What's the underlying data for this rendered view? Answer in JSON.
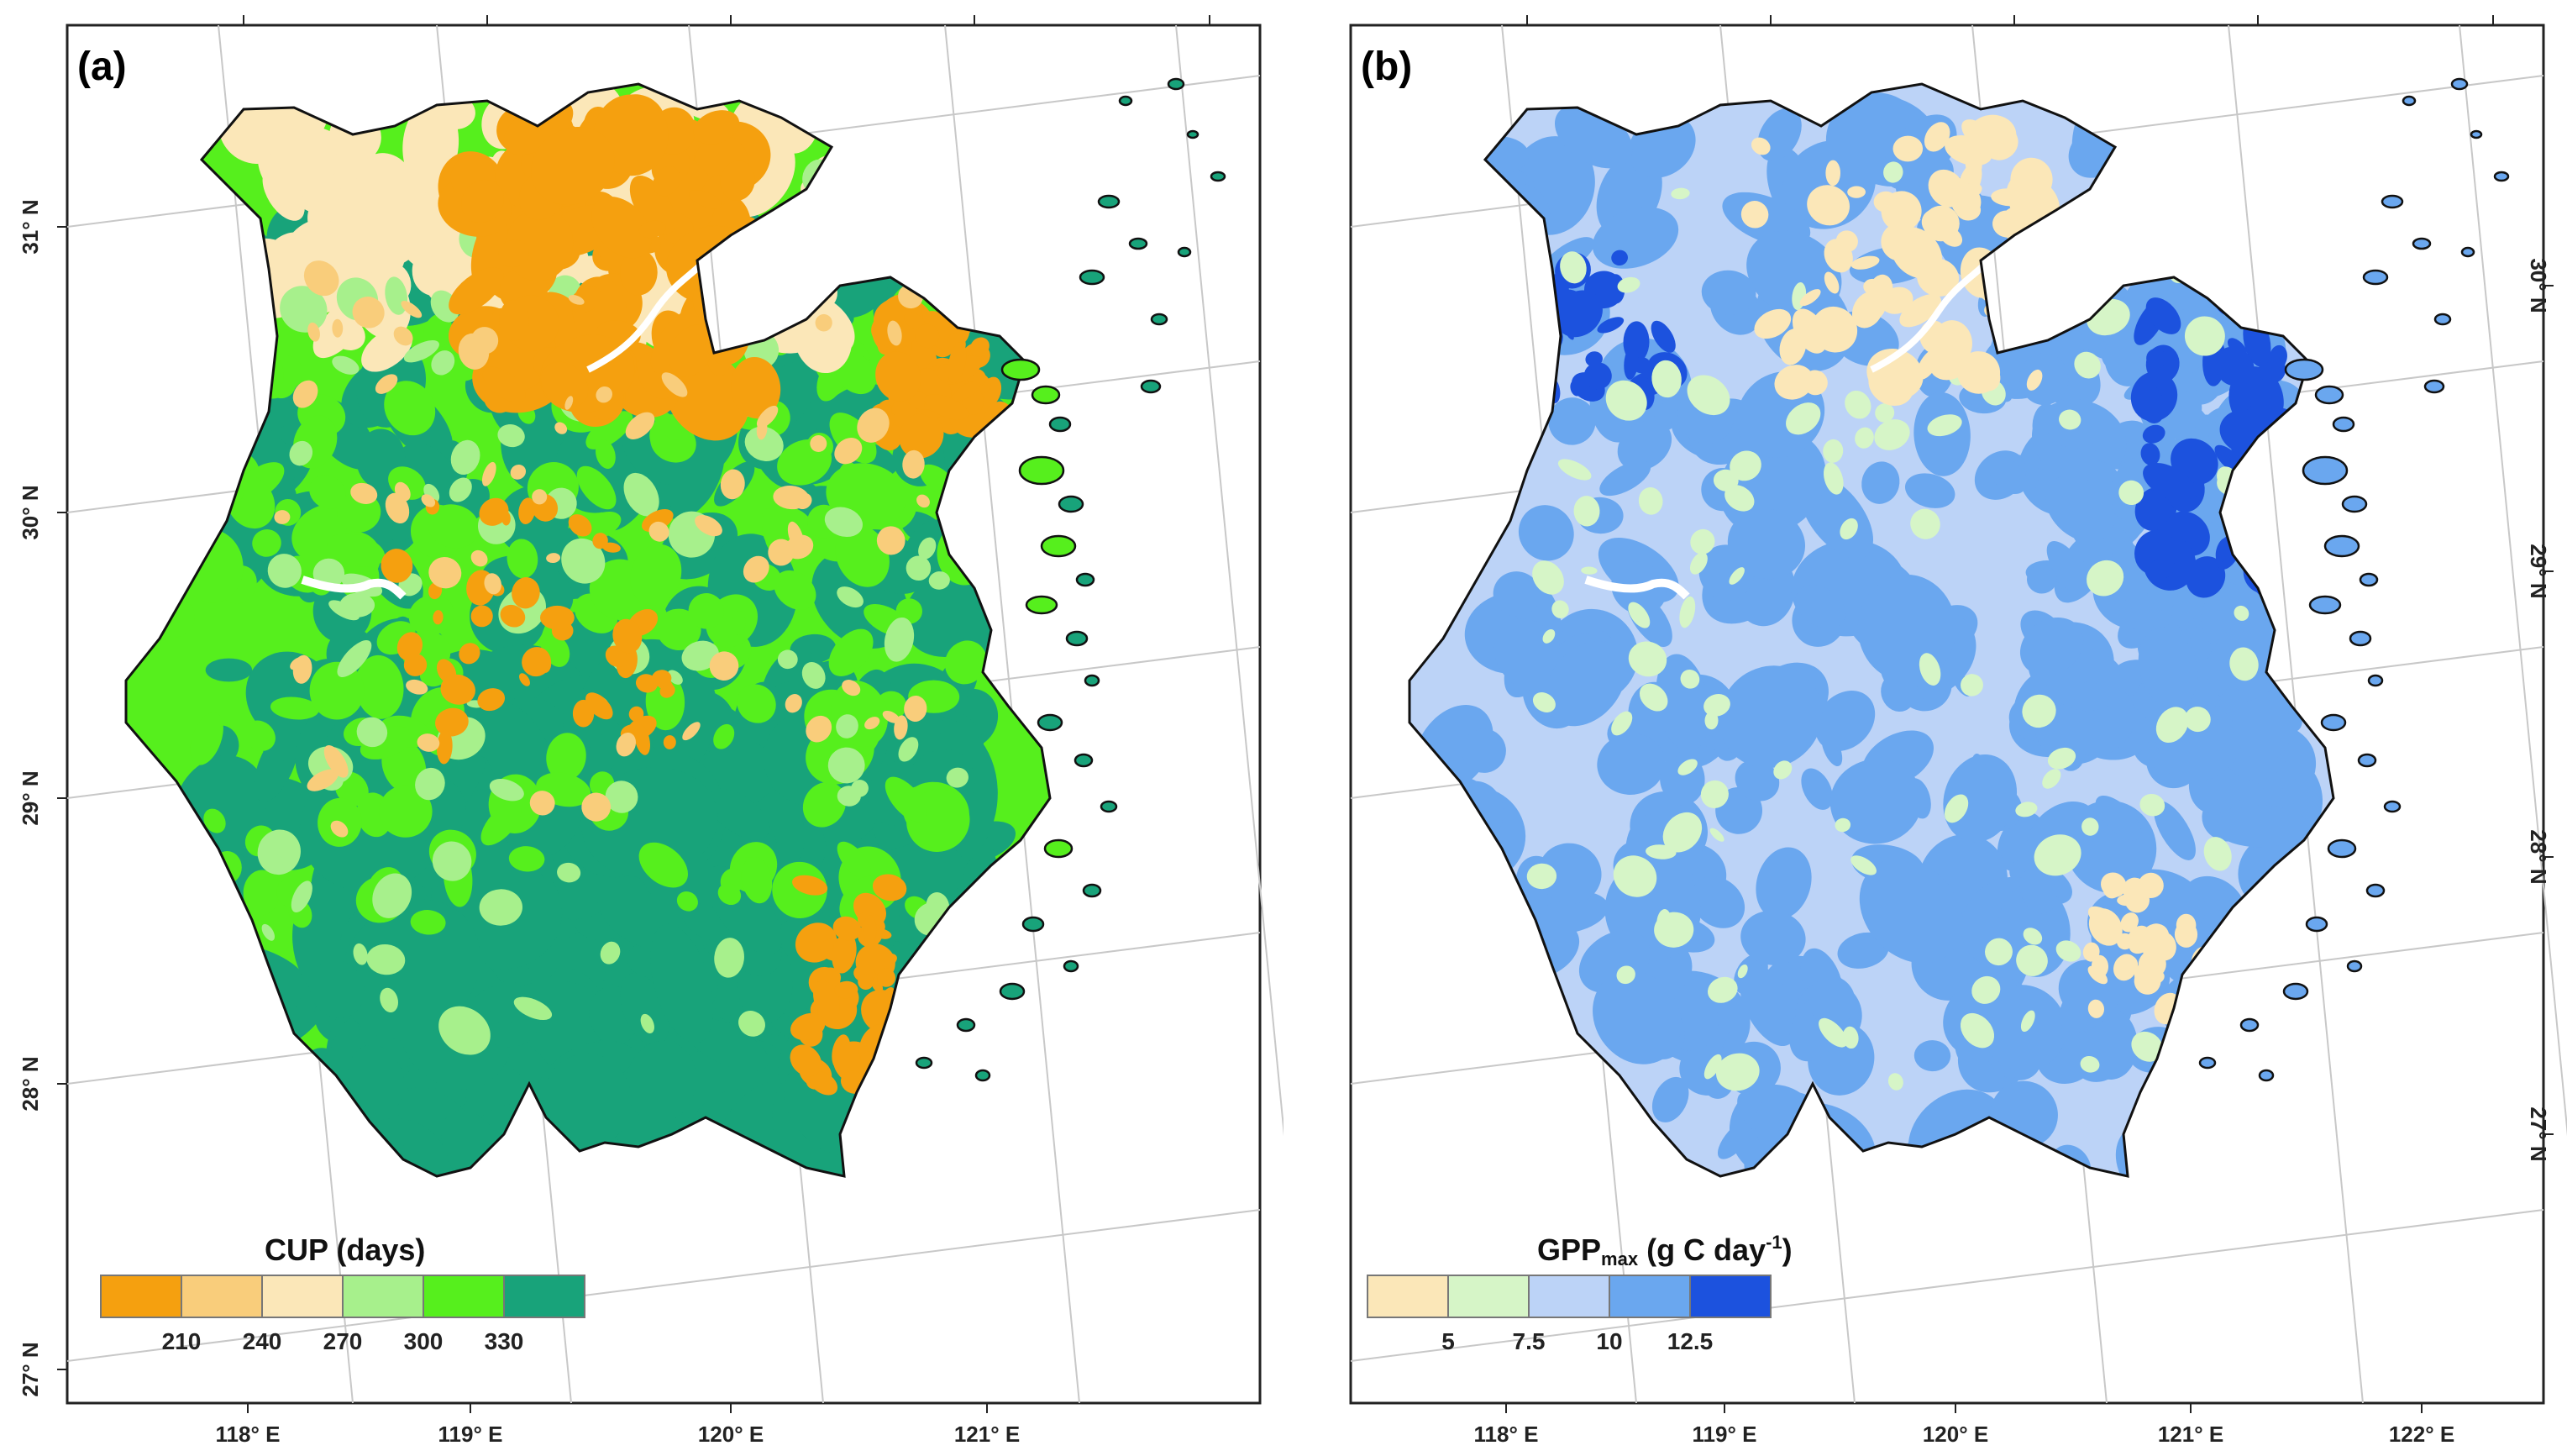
{
  "figure": {
    "panels": [
      {
        "label": "(a)",
        "theme": "green",
        "legend": {
          "title": "CUP (days)",
          "title_main": "CUP (days)",
          "title_sub": "",
          "title_tail": "",
          "title_sup": "",
          "title_end": "",
          "colors": [
            "#f5a00f",
            "#f9cd7b",
            "#fbe7b8",
            "#a7f08c",
            "#56ef1d",
            "#18a37a"
          ],
          "ticks": [
            "210",
            "240",
            "270",
            "300",
            "330"
          ]
        },
        "lon_labels": [
          "118° E",
          "119° E",
          "120° E",
          "121° E"
        ],
        "lat_labels": [
          "27° N",
          "28° N",
          "29° N",
          "30° N",
          "31° N"
        ]
      },
      {
        "label": "(b)",
        "theme": "blue",
        "legend": {
          "title": "GPPmax (g C day-1)",
          "title_main": "GPP",
          "title_sub": "max",
          "title_tail": " (g C day",
          "title_sup": "-1",
          "title_end": ")",
          "colors": [
            "#fbe7b8",
            "#d6f5c7",
            "#bcd3f7",
            "#6aa7ef",
            "#1c52de"
          ],
          "ticks": [
            "5",
            "7.5",
            "10",
            "12.5"
          ]
        },
        "lon_labels": [
          "118° E",
          "119° E",
          "120° E",
          "121° E",
          "122° E"
        ],
        "lat_labels": [
          "27° N",
          "28° N",
          "29° N",
          "30° N"
        ]
      }
    ]
  },
  "colors": {
    "frame": "#222222",
    "graticule": "#c8c8c8",
    "boundary": "#111111"
  }
}
